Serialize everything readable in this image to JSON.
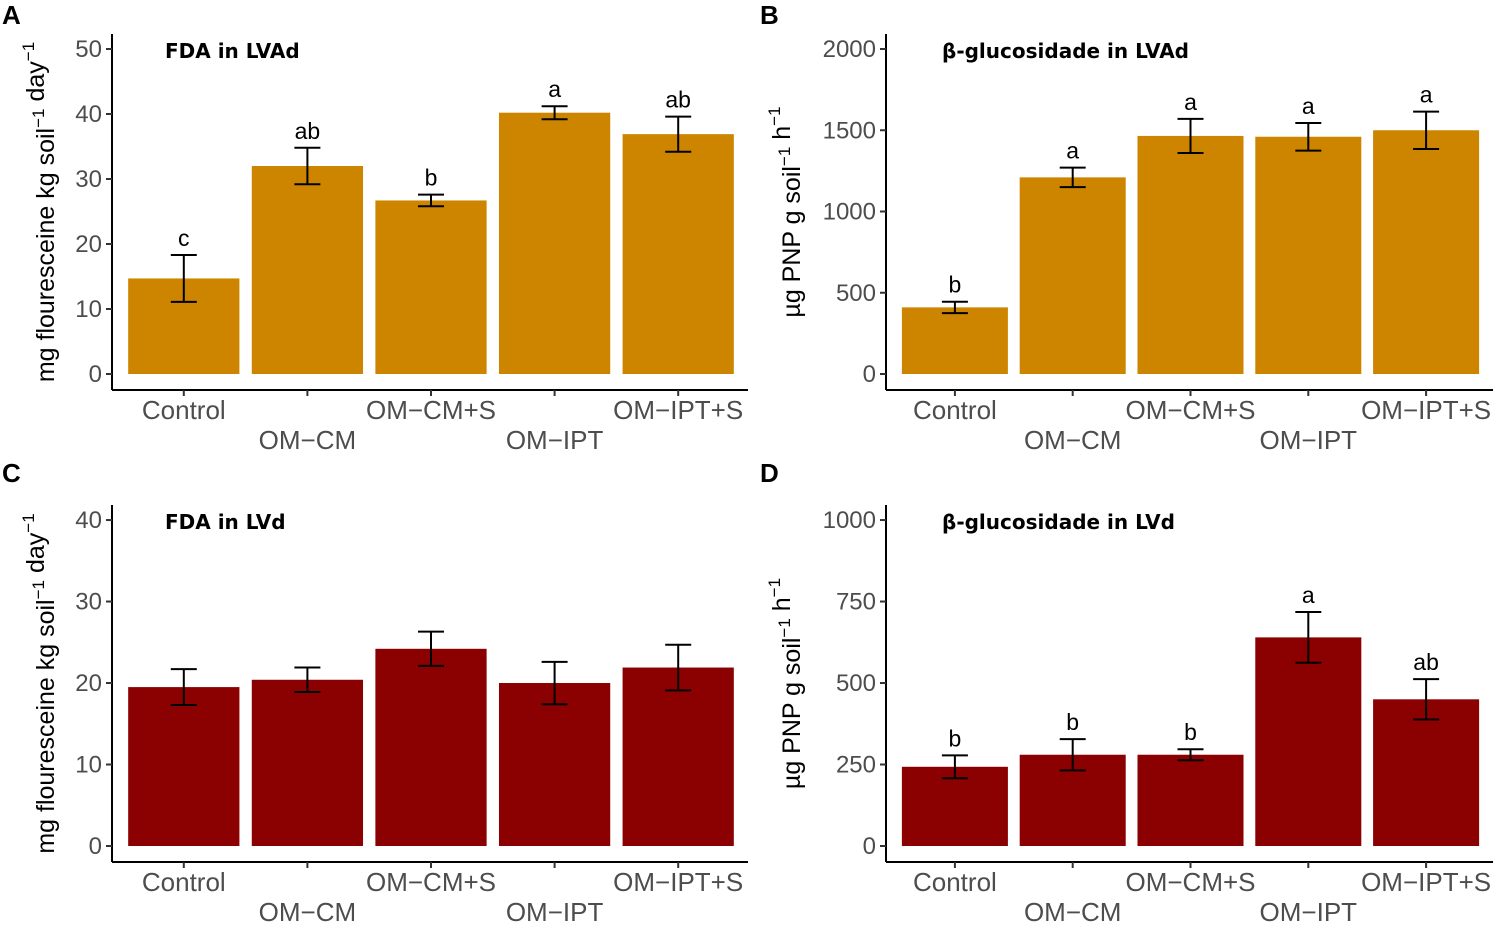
{
  "chart_data": [
    {
      "panel": "A",
      "type": "bar",
      "title": "FDA in LVAd",
      "ylabel": "mg flouresceine kg soil",
      "ylabel_units": [
        {
          "base": "mg flouresceine kg soil",
          "sup": "−1"
        },
        {
          "base": " day",
          "sup": "−1"
        }
      ],
      "categories": [
        "Control",
        "OM−CM",
        "OM−CM+S",
        "OM−IPT",
        "OM−IPT+S"
      ],
      "values": [
        14.7,
        32.0,
        26.7,
        40.2,
        36.9
      ],
      "errors": [
        3.6,
        2.8,
        0.9,
        1.0,
        2.7
      ],
      "significance": [
        "c",
        "ab",
        "b",
        "a",
        "ab"
      ],
      "yticks": [
        0,
        10,
        20,
        30,
        40,
        50
      ],
      "ylim": [
        0,
        52
      ],
      "color": "#CD8500"
    },
    {
      "panel": "B",
      "type": "bar",
      "title": "β-glucosidade in LVAd",
      "ylabel": "µg PNP g soil",
      "ylabel_units": [
        {
          "base": "µg PNP g soil",
          "sup": "−1"
        },
        {
          "base": " h",
          "sup": "−1"
        }
      ],
      "categories": [
        "Control",
        "OM−CM",
        "OM−CM+S",
        "OM−IPT",
        "OM−IPT+S"
      ],
      "values": [
        410,
        1210,
        1465,
        1460,
        1500
      ],
      "errors": [
        35,
        60,
        105,
        85,
        115
      ],
      "significance": [
        "b",
        "a",
        "a",
        "a",
        "a"
      ],
      "yticks": [
        0,
        500,
        1000,
        1500,
        2000
      ],
      "ylim": [
        0,
        2080
      ],
      "color": "#CD8500"
    },
    {
      "panel": "C",
      "type": "bar",
      "title": "FDA in LVd",
      "ylabel": "mg flouresceine kg soil",
      "ylabel_units": [
        {
          "base": "mg flouresceine kg soil",
          "sup": "−1"
        },
        {
          "base": " day",
          "sup": "−1"
        }
      ],
      "categories": [
        "Control",
        "OM−CM",
        "OM−CM+S",
        "OM−IPT",
        "OM−IPT+S"
      ],
      "values": [
        19.5,
        20.4,
        24.2,
        20.0,
        21.9
      ],
      "errors": [
        2.2,
        1.5,
        2.1,
        2.6,
        2.8
      ],
      "significance": [
        "",
        "",
        "",
        "",
        ""
      ],
      "yticks": [
        0,
        10,
        20,
        30,
        40
      ],
      "ylim": [
        0,
        41.6
      ],
      "color": "#8B0000"
    },
    {
      "panel": "D",
      "type": "bar",
      "title": "β-glucosidade in LVd",
      "ylabel": "µg PNP g soil",
      "ylabel_units": [
        {
          "base": "µg PNP g soil",
          "sup": "−1"
        },
        {
          "base": " h",
          "sup": "−1"
        }
      ],
      "categories": [
        "Control",
        "OM−CM",
        "OM−CM+S",
        "OM−IPT",
        "OM−IPT+S"
      ],
      "values": [
        243,
        280,
        280,
        640,
        450
      ],
      "errors": [
        35,
        48,
        17,
        78,
        62
      ],
      "significance": [
        "b",
        "b",
        "b",
        "a",
        "ab"
      ],
      "yticks": [
        0,
        250,
        500,
        750,
        1000
      ],
      "ylim": [
        0,
        1040
      ],
      "color": "#8B0000"
    }
  ]
}
